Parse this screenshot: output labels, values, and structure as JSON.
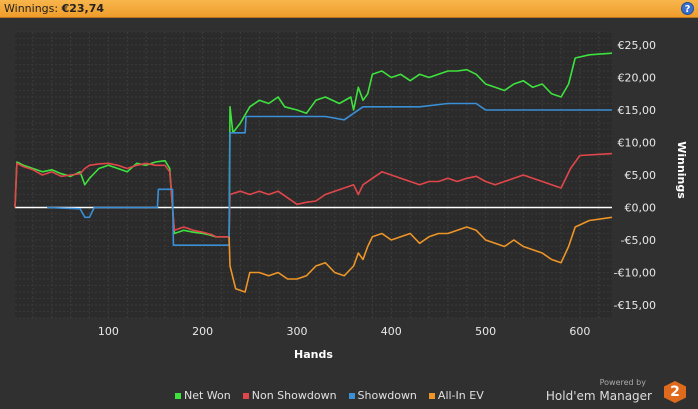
{
  "header": {
    "label": "Winnings:",
    "value": "€23,74",
    "help_icon": "help-icon",
    "help_glyph": "?"
  },
  "chart_data": {
    "type": "line",
    "xlabel": "Hands",
    "ylabel": "Winnings",
    "xlim": [
      1,
      634
    ],
    "ylim": [
      -17,
      27
    ],
    "xticks": [
      100,
      200,
      300,
      400,
      500,
      600
    ],
    "yticks": [
      25,
      20,
      15,
      10,
      5,
      0,
      -5,
      -10,
      -15
    ],
    "ytick_labels": [
      "€25,00",
      "€20,00",
      "€15,00",
      "€10,00",
      "€5,00",
      "€0,00",
      "-€5,00",
      "-€10,00",
      "-€15,00"
    ],
    "grid": true,
    "legend_position": "bottom",
    "series": [
      {
        "name": "Net Won",
        "color": "#3ee23e",
        "points": [
          [
            1,
            0
          ],
          [
            3,
            7
          ],
          [
            10,
            6.5
          ],
          [
            20,
            6
          ],
          [
            30,
            5.5
          ],
          [
            40,
            5.8
          ],
          [
            50,
            5.2
          ],
          [
            60,
            4.8
          ],
          [
            70,
            5.5
          ],
          [
            75,
            3.5
          ],
          [
            80,
            4.5
          ],
          [
            90,
            6
          ],
          [
            100,
            6.5
          ],
          [
            110,
            6
          ],
          [
            120,
            5.5
          ],
          [
            130,
            6.8
          ],
          [
            140,
            6.5
          ],
          [
            150,
            7
          ],
          [
            160,
            7.2
          ],
          [
            165,
            6
          ],
          [
            170,
            -4
          ],
          [
            180,
            -3.5
          ],
          [
            190,
            -3.8
          ],
          [
            200,
            -4
          ],
          [
            207,
            -4.2
          ],
          [
            214,
            -4.5
          ],
          [
            228,
            -4.5
          ],
          [
            229,
            15.5
          ],
          [
            232,
            11.5
          ],
          [
            240,
            13
          ],
          [
            250,
            15.5
          ],
          [
            260,
            16.5
          ],
          [
            270,
            16
          ],
          [
            280,
            17
          ],
          [
            287,
            15.5
          ],
          [
            300,
            15
          ],
          [
            310,
            14.5
          ],
          [
            320,
            16.5
          ],
          [
            330,
            17
          ],
          [
            345,
            16
          ],
          [
            357,
            17
          ],
          [
            360,
            15
          ],
          [
            365,
            18.5
          ],
          [
            370,
            16.5
          ],
          [
            375,
            17.5
          ],
          [
            380,
            20.5
          ],
          [
            390,
            21
          ],
          [
            400,
            20
          ],
          [
            410,
            20.5
          ],
          [
            420,
            19.5
          ],
          [
            430,
            20.5
          ],
          [
            440,
            20
          ],
          [
            450,
            20.5
          ],
          [
            460,
            21
          ],
          [
            470,
            21
          ],
          [
            480,
            21.2
          ],
          [
            490,
            20.5
          ],
          [
            500,
            19
          ],
          [
            510,
            18.5
          ],
          [
            520,
            18
          ],
          [
            530,
            19
          ],
          [
            540,
            19.5
          ],
          [
            550,
            18.5
          ],
          [
            560,
            19
          ],
          [
            570,
            17.5
          ],
          [
            580,
            17
          ],
          [
            588,
            19
          ],
          [
            595,
            23
          ],
          [
            610,
            23.5
          ],
          [
            634,
            23.74
          ]
        ]
      },
      {
        "name": "Non Showdown",
        "color": "#e0464a",
        "points": [
          [
            1,
            0
          ],
          [
            3,
            6.8
          ],
          [
            10,
            6.3
          ],
          [
            20,
            5.8
          ],
          [
            30,
            5
          ],
          [
            40,
            5.5
          ],
          [
            50,
            4.8
          ],
          [
            60,
            5
          ],
          [
            70,
            5.2
          ],
          [
            75,
            6
          ],
          [
            80,
            6.5
          ],
          [
            90,
            6.7
          ],
          [
            100,
            6.8
          ],
          [
            110,
            6.5
          ],
          [
            120,
            6
          ],
          [
            130,
            6.5
          ],
          [
            140,
            6.8
          ],
          [
            150,
            6.5
          ],
          [
            160,
            6.5
          ],
          [
            165,
            5.5
          ],
          [
            170,
            -3.5
          ],
          [
            180,
            -3
          ],
          [
            190,
            -3.5
          ],
          [
            200,
            -3.8
          ],
          [
            210,
            -4.2
          ],
          [
            214,
            -4.5
          ],
          [
            228,
            -4.5
          ],
          [
            229,
            2
          ],
          [
            240,
            2.5
          ],
          [
            250,
            2
          ],
          [
            260,
            2.5
          ],
          [
            270,
            2
          ],
          [
            280,
            2.5
          ],
          [
            290,
            1.5
          ],
          [
            300,
            0.5
          ],
          [
            310,
            0.8
          ],
          [
            320,
            1
          ],
          [
            330,
            2
          ],
          [
            340,
            2.5
          ],
          [
            350,
            3
          ],
          [
            360,
            3.5
          ],
          [
            365,
            2
          ],
          [
            370,
            3.5
          ],
          [
            380,
            4.5
          ],
          [
            390,
            5.5
          ],
          [
            400,
            5
          ],
          [
            410,
            4.5
          ],
          [
            420,
            4
          ],
          [
            430,
            3.5
          ],
          [
            440,
            4
          ],
          [
            450,
            4
          ],
          [
            460,
            4.5
          ],
          [
            470,
            4
          ],
          [
            480,
            4.5
          ],
          [
            490,
            4.8
          ],
          [
            500,
            4
          ],
          [
            510,
            3.5
          ],
          [
            520,
            4
          ],
          [
            530,
            4.5
          ],
          [
            540,
            5
          ],
          [
            550,
            4.5
          ],
          [
            560,
            4
          ],
          [
            570,
            3.5
          ],
          [
            580,
            3
          ],
          [
            590,
            6
          ],
          [
            600,
            8
          ],
          [
            634,
            8.3
          ]
        ]
      },
      {
        "name": "Showdown",
        "color": "#3a8fd6",
        "points": [
          [
            35,
            0
          ],
          [
            70,
            -0.2
          ],
          [
            75,
            -1.5
          ],
          [
            80,
            -1.5
          ],
          [
            85,
            0
          ],
          [
            152,
            0
          ],
          [
            153,
            2.8
          ],
          [
            168,
            2.8
          ],
          [
            169,
            -5.8
          ],
          [
            228,
            -5.8
          ],
          [
            229,
            11.5
          ],
          [
            245,
            11.5
          ],
          [
            246,
            14
          ],
          [
            300,
            14
          ],
          [
            330,
            14
          ],
          [
            350,
            13.5
          ],
          [
            360,
            14.5
          ],
          [
            370,
            15.5
          ],
          [
            430,
            15.5
          ],
          [
            460,
            16
          ],
          [
            490,
            16
          ],
          [
            500,
            15
          ],
          [
            634,
            15
          ]
        ]
      },
      {
        "name": "All-In EV",
        "color": "#ee9528",
        "points": [
          [
            228,
            -4.5
          ],
          [
            229,
            -9
          ],
          [
            235,
            -12.5
          ],
          [
            245,
            -13
          ],
          [
            250,
            -10
          ],
          [
            260,
            -10
          ],
          [
            270,
            -10.5
          ],
          [
            280,
            -10
          ],
          [
            290,
            -11
          ],
          [
            300,
            -11
          ],
          [
            310,
            -10.5
          ],
          [
            320,
            -9
          ],
          [
            330,
            -8.5
          ],
          [
            340,
            -10
          ],
          [
            350,
            -10.5
          ],
          [
            360,
            -9
          ],
          [
            365,
            -7
          ],
          [
            370,
            -8
          ],
          [
            375,
            -6
          ],
          [
            380,
            -4.5
          ],
          [
            390,
            -4
          ],
          [
            400,
            -5
          ],
          [
            410,
            -4.5
          ],
          [
            420,
            -4
          ],
          [
            430,
            -5.5
          ],
          [
            440,
            -4.5
          ],
          [
            450,
            -4
          ],
          [
            460,
            -4
          ],
          [
            470,
            -3.5
          ],
          [
            480,
            -3
          ],
          [
            490,
            -3.5
          ],
          [
            500,
            -5
          ],
          [
            510,
            -5.5
          ],
          [
            520,
            -6
          ],
          [
            530,
            -5
          ],
          [
            540,
            -6
          ],
          [
            550,
            -6.5
          ],
          [
            560,
            -7
          ],
          [
            570,
            -8
          ],
          [
            580,
            -8.5
          ],
          [
            588,
            -6
          ],
          [
            595,
            -3
          ],
          [
            610,
            -2
          ],
          [
            634,
            -1.5
          ]
        ]
      }
    ]
  },
  "brand": {
    "powered_by": "Powered by",
    "name": "Hold'em Manager",
    "logo_text": "2"
  }
}
